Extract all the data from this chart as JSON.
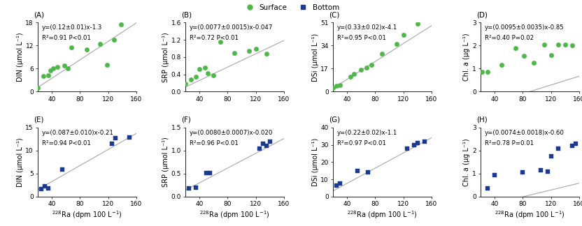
{
  "panels": [
    {
      "label": "A",
      "row": 0,
      "col": 0,
      "eq_line1": "y=(0.12±0.01)x-1.3",
      "eq_line2": "R²=0.91 P<0.01",
      "ylabel": "DIN (μmol L⁻¹)",
      "ylim": [
        0,
        18
      ],
      "yticks": [
        0,
        6,
        12,
        18
      ],
      "scatter_x": [
        20,
        28,
        35,
        38,
        42,
        48,
        58,
        63,
        68,
        90,
        108,
        118,
        128,
        138
      ],
      "scatter_y": [
        1.0,
        4.0,
        4.2,
        5.5,
        6.0,
        6.5,
        6.8,
        6.0,
        11.5,
        11.0,
        12.5,
        7.0,
        13.5,
        17.5
      ],
      "slope": 0.12,
      "intercept": -1.3,
      "color": "#4db848",
      "marker": "o",
      "series": "surface"
    },
    {
      "label": "B",
      "row": 0,
      "col": 1,
      "eq_line1": "y=(0.0077±0.0015)x-0.047",
      "eq_line2": "R²=0.72 P<0.01",
      "ylabel": "SRP (μmol L⁻¹)",
      "ylim": [
        0,
        1.6
      ],
      "yticks": [
        0,
        0.4,
        0.8,
        1.2,
        1.6
      ],
      "scatter_x": [
        20,
        28,
        35,
        40,
        48,
        52,
        60,
        70,
        90,
        110,
        120,
        135
      ],
      "scatter_y": [
        0.18,
        0.28,
        0.35,
        0.52,
        0.55,
        0.42,
        0.38,
        1.15,
        0.9,
        0.95,
        1.0,
        0.88
      ],
      "slope": 0.0077,
      "intercept": -0.047,
      "color": "#4db848",
      "marker": "o",
      "series": "surface"
    },
    {
      "label": "C",
      "row": 0,
      "col": 2,
      "eq_line1": "y=(0.33±0.02)x-4.1",
      "eq_line2": "R²=0.95 P<0.01",
      "ylabel": "DSi (μmol L⁻¹)",
      "ylim": [
        0,
        51
      ],
      "yticks": [
        0,
        17,
        34,
        51
      ],
      "scatter_x": [
        20,
        25,
        30,
        45,
        50,
        60,
        68,
        75,
        90,
        110,
        120,
        140
      ],
      "scatter_y": [
        3.0,
        4.5,
        5.0,
        11.0,
        13.0,
        16.0,
        17.5,
        20.0,
        28.0,
        35.0,
        42.0,
        50.0
      ],
      "slope": 0.33,
      "intercept": -4.1,
      "color": "#4db848",
      "marker": "o",
      "series": "surface"
    },
    {
      "label": "D",
      "row": 0,
      "col": 3,
      "eq_line1": "y=(0.0095±0.0035)x-0.85",
      "eq_line2": "R²=0.40 P=0.02",
      "ylabel": "Chl. a (μg L⁻¹)",
      "ylim": [
        0,
        3
      ],
      "yticks": [
        0,
        1,
        2,
        3
      ],
      "scatter_x": [
        22,
        30,
        50,
        70,
        82,
        95,
        110,
        120,
        130,
        140,
        150
      ],
      "scatter_y": [
        0.85,
        0.85,
        1.15,
        1.9,
        1.55,
        1.25,
        2.05,
        1.6,
        2.05,
        2.05,
        2.0
      ],
      "slope": 0.0095,
      "intercept": -0.85,
      "color": "#4db848",
      "marker": "o",
      "series": "surface"
    },
    {
      "label": "E",
      "row": 1,
      "col": 0,
      "eq_line1": "y=(0.087±0.010)x-0.21",
      "eq_line2": "R²=0.94 P<0.01",
      "ylabel": "DIN (μmol L⁻¹)",
      "ylim": [
        0,
        15
      ],
      "yticks": [
        0,
        5,
        10,
        15
      ],
      "scatter_x": [
        25,
        30,
        35,
        55,
        125,
        130,
        150
      ],
      "scatter_y": [
        1.7,
        2.2,
        1.8,
        5.9,
        11.5,
        12.7,
        12.8
      ],
      "slope": 0.087,
      "intercept": -0.21,
      "color": "#1a3a8f",
      "marker": "s",
      "series": "bottom"
    },
    {
      "label": "F",
      "row": 1,
      "col": 1,
      "eq_line1": "y=(0.0080±0.0007)x-0.020",
      "eq_line2": "R²=0.96 P<0.01",
      "ylabel": "SRP (μmol L⁻¹)",
      "ylim": [
        0,
        1.5
      ],
      "yticks": [
        0,
        0.5,
        1.0,
        1.5
      ],
      "scatter_x": [
        25,
        35,
        50,
        55,
        125,
        130,
        135,
        140
      ],
      "scatter_y": [
        0.18,
        0.2,
        0.52,
        0.52,
        1.05,
        1.15,
        1.1,
        1.2
      ],
      "slope": 0.008,
      "intercept": -0.02,
      "color": "#1a3a8f",
      "marker": "s",
      "series": "bottom"
    },
    {
      "label": "G",
      "row": 1,
      "col": 2,
      "eq_line1": "y=(0.22±0.02)x-1.1",
      "eq_line2": "R²=0.97 P<0.01",
      "ylabel": "DSi (μmol L⁻¹)",
      "ylim": [
        0,
        40
      ],
      "yticks": [
        0,
        10,
        20,
        30,
        40
      ],
      "scatter_x": [
        25,
        30,
        55,
        70,
        125,
        135,
        140,
        150
      ],
      "scatter_y": [
        6.5,
        7.5,
        15.0,
        14.0,
        28.0,
        30.0,
        31.0,
        32.0
      ],
      "slope": 0.22,
      "intercept": -1.1,
      "color": "#1a3a8f",
      "marker": "s",
      "series": "bottom"
    },
    {
      "label": "H",
      "row": 1,
      "col": 3,
      "eq_line1": "y=(0.0074±0.0018)x-0.60",
      "eq_line2": "R²=0.78 P=0.01",
      "ylabel": "Chl. a (μg L⁻¹)",
      "ylim": [
        0,
        3
      ],
      "yticks": [
        0,
        1,
        2,
        3
      ],
      "scatter_x": [
        30,
        40,
        80,
        105,
        115,
        120,
        130,
        150,
        155
      ],
      "scatter_y": [
        0.35,
        0.95,
        1.05,
        1.15,
        1.1,
        1.75,
        2.1,
        2.2,
        2.3
      ],
      "slope": 0.0074,
      "intercept": -0.6,
      "color": "#1a3a8f",
      "marker": "s",
      "series": "bottom"
    }
  ],
  "xlim": [
    20,
    160
  ],
  "xticks": [
    40,
    80,
    120,
    160
  ],
  "xlabel_template": "$^{228}$Ra (dpm 100 L$^{-1}$)",
  "surface_color": "#4db848",
  "bottom_color": "#1a3a8f",
  "line_color": "#b0b0b0",
  "bg_color": "#ffffff",
  "tick_fontsize": 6.5,
  "label_fontsize": 7,
  "eq_fontsize": 6.2,
  "panel_label_fontsize": 7.5
}
